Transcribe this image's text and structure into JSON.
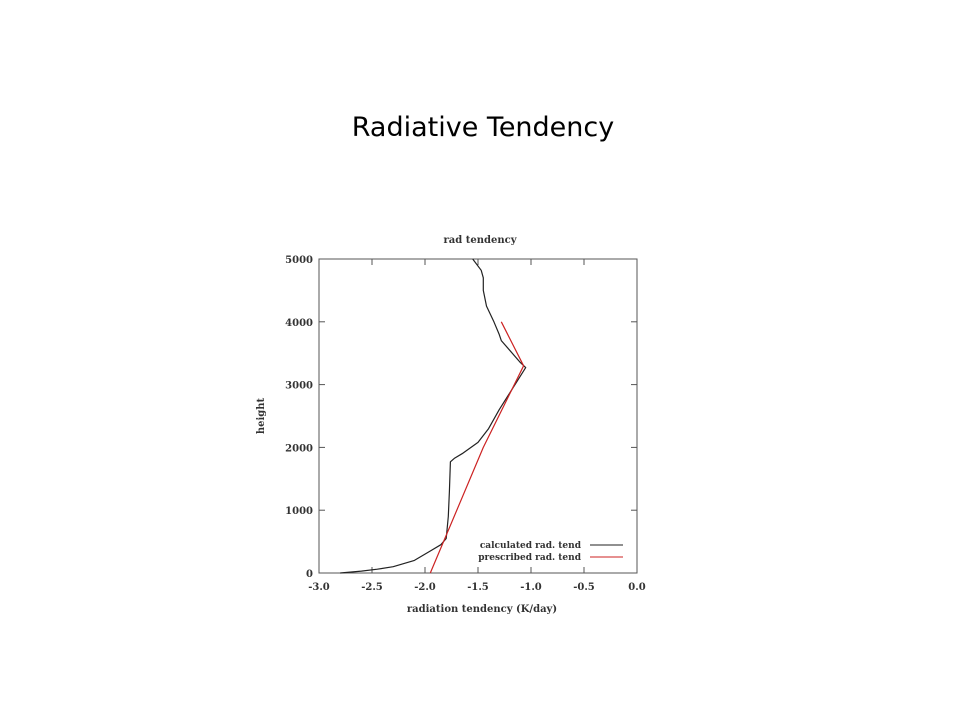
{
  "slide": {
    "title": "Radiative Tendency"
  },
  "chart_data": {
    "type": "line",
    "title": "rad tendency",
    "xlabel": "radiation tendency (K/day)",
    "ylabel": "height",
    "xlim": [
      -3.0,
      0.0
    ],
    "ylim": [
      0,
      5000
    ],
    "xticks": [
      "-3.0",
      "-2.5",
      "-2.0",
      "-1.5",
      "-1.0",
      "-0.5",
      "0.0"
    ],
    "yticks": [
      "0",
      "1000",
      "2000",
      "3000",
      "4000",
      "5000"
    ],
    "grid": false,
    "legend_position": "bottom-right",
    "series": [
      {
        "name": "calculated rad. tend",
        "color": "#222222",
        "x": [
          -2.8,
          -2.6,
          -2.45,
          -2.3,
          -2.1,
          -1.95,
          -1.85,
          -1.8,
          -1.78,
          -1.77,
          -1.76,
          -1.72,
          -1.65,
          -1.5,
          -1.4,
          -1.3,
          -1.05,
          -1.1,
          -1.28,
          -1.3,
          -1.35,
          -1.42,
          -1.45,
          -1.45,
          -1.47,
          -1.55
        ],
        "y": [
          0,
          30,
          60,
          100,
          200,
          350,
          450,
          550,
          900,
          1300,
          1770,
          1830,
          1900,
          2080,
          2300,
          2600,
          3270,
          3350,
          3700,
          3800,
          4000,
          4250,
          4500,
          4700,
          4820,
          5000
        ]
      },
      {
        "name": "prescribed rad. tend",
        "color": "#cc2222",
        "x": [
          -1.95,
          -1.45,
          -1.07,
          -1.28
        ],
        "y": [
          0,
          2000,
          3300,
          4000
        ]
      }
    ]
  }
}
